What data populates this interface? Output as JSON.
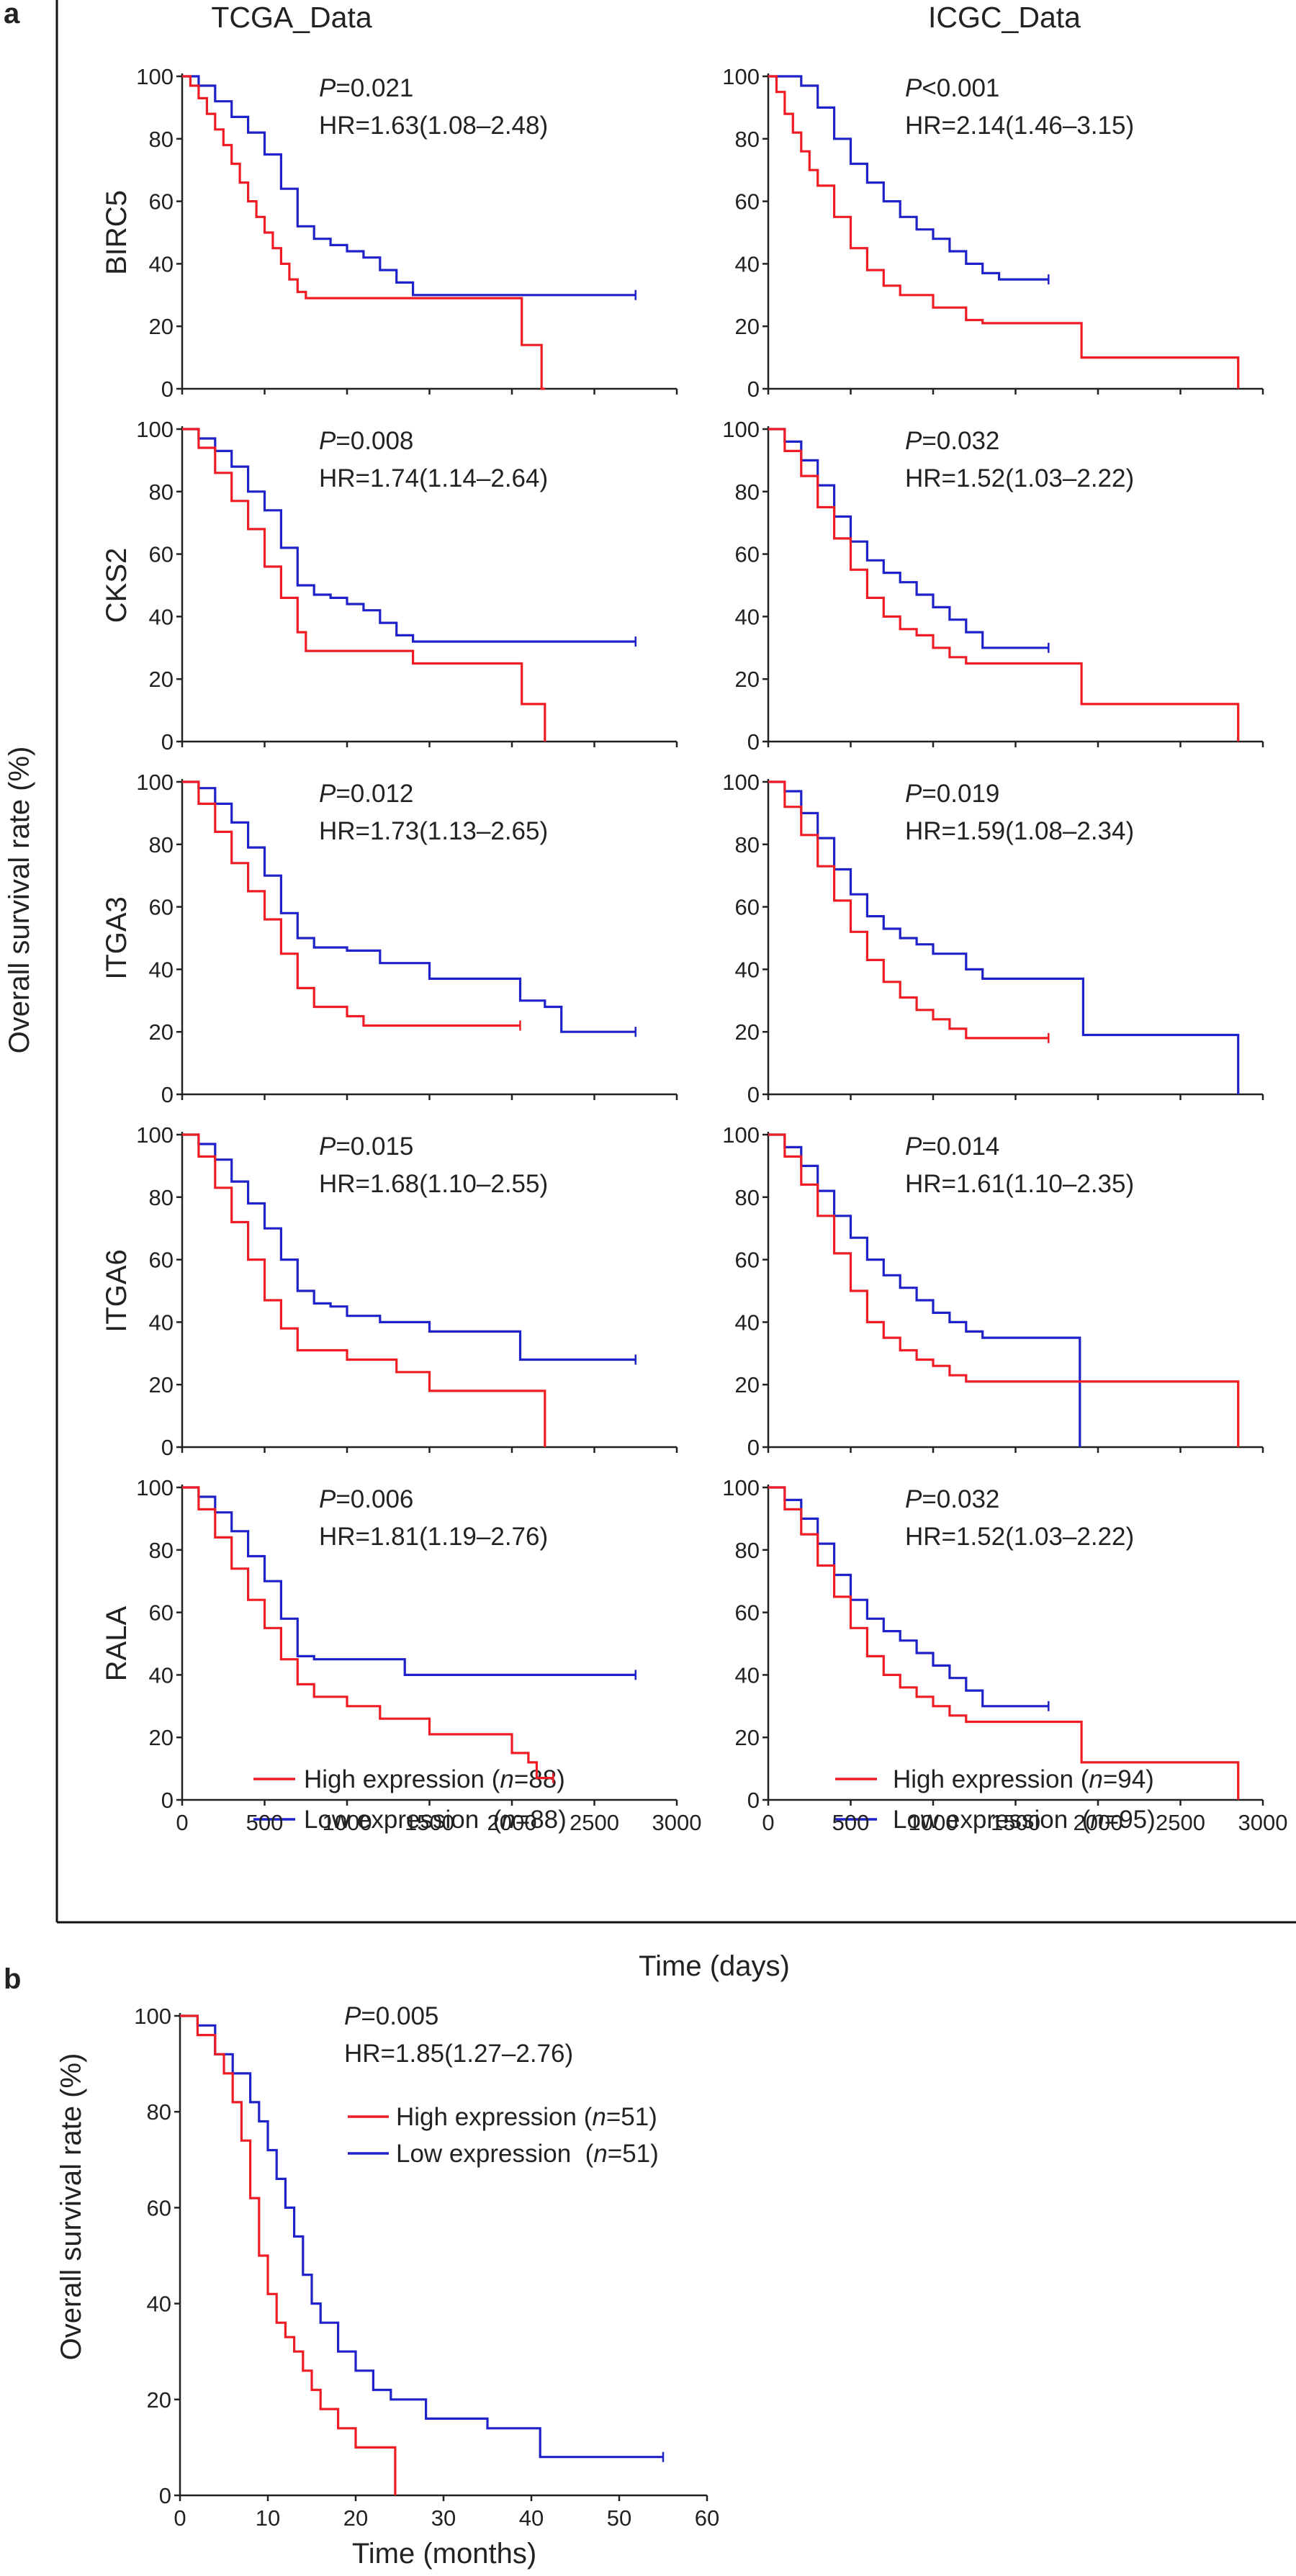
{
  "panel_labels": [
    "a",
    "b"
  ],
  "column_titles": [
    "TCGA_Data",
    "ICGC_Data"
  ],
  "panel_a": {
    "ylabel": "Overall survival rate (%)",
    "xlabel": "Time (days)",
    "y_ticks": [
      "0",
      "20",
      "40",
      "60",
      "80",
      "100"
    ],
    "x_ticks": [
      "0",
      "500",
      "1000",
      "1500",
      "2000",
      "2500",
      "3000"
    ],
    "legends": [
      {
        "high": "High expression (",
        "high_n": "n",
        "high_val": "=88)",
        "low": "Low expression  (",
        "low_n": "n",
        "low_val": "=88)"
      },
      {
        "high": "High expression (",
        "high_n": "n",
        "high_val": "=94)",
        "low": "Low expression  (",
        "low_n": "n",
        "low_val": "=95)"
      }
    ]
  },
  "panel_b": {
    "ylabel": "Overall survival rate (%)",
    "xlabel": "Time (months)",
    "y_ticks": [
      "0",
      "20",
      "40",
      "60",
      "80",
      "100"
    ],
    "x_ticks": [
      "0",
      "10",
      "20",
      "30",
      "40",
      "50",
      "60"
    ],
    "legend": {
      "high": "High expression (",
      "high_n": "n",
      "high_val": "=51)",
      "low": "Low expression  (",
      "low_n": "n",
      "low_val": "=51)"
    }
  },
  "colors": {
    "high": "#ee1c25",
    "low": "#1e22c8"
  },
  "chart_data": [
    {
      "type": "line",
      "title": "TCGA_Data",
      "gene": "BIRC5",
      "p_label": "P",
      "p_value": "=0.021",
      "hr": "HR=1.63(1.08–2.48)",
      "xlim": [
        0,
        3000
      ],
      "ylim": [
        0,
        100
      ],
      "series": [
        {
          "name": "High expression",
          "x": [
            0,
            50,
            100,
            150,
            200,
            250,
            300,
            350,
            400,
            450,
            500,
            550,
            600,
            650,
            700,
            750,
            2050,
            2060,
            2150,
            2180,
            2200
          ],
          "y": [
            100,
            97,
            93,
            88,
            83,
            78,
            72,
            66,
            60,
            55,
            50,
            45,
            40,
            35,
            31,
            29,
            29,
            14,
            14,
            0,
            0
          ]
        },
        {
          "name": "Low expression",
          "x": [
            0,
            100,
            200,
            300,
            400,
            500,
            600,
            700,
            800,
            900,
            1000,
            1100,
            1200,
            1300,
            1400,
            2000,
            2750
          ],
          "y": [
            100,
            97,
            92,
            87,
            82,
            75,
            64,
            52,
            48,
            46,
            44,
            42,
            38,
            34,
            30,
            30,
            30
          ]
        }
      ]
    },
    {
      "type": "line",
      "title": "ICGC_Data",
      "gene": "BIRC5",
      "p_label": "P",
      "p_value": "<0.001",
      "hr": "HR=2.14(1.46–3.15)",
      "xlim": [
        0,
        3000
      ],
      "ylim": [
        0,
        100
      ],
      "series": [
        {
          "name": "High expression",
          "x": [
            0,
            50,
            100,
            150,
            200,
            250,
            300,
            400,
            500,
            600,
            700,
            800,
            1000,
            1200,
            1300,
            1900,
            2850
          ],
          "y": [
            100,
            95,
            88,
            82,
            76,
            70,
            65,
            55,
            45,
            38,
            33,
            30,
            26,
            22,
            21,
            10,
            0
          ]
        },
        {
          "name": "Low expression",
          "x": [
            0,
            150,
            200,
            300,
            400,
            500,
            600,
            700,
            800,
            900,
            1000,
            1100,
            1200,
            1300,
            1400,
            1700
          ],
          "y": [
            100,
            100,
            97,
            90,
            80,
            72,
            66,
            60,
            55,
            51,
            48,
            44,
            40,
            37,
            35,
            35
          ]
        }
      ]
    },
    {
      "type": "line",
      "title": "TCGA_Data",
      "gene": "CKS2",
      "p_label": "P",
      "p_value": "=0.008",
      "hr": "HR=1.74(1.14–2.64)",
      "xlim": [
        0,
        3000
      ],
      "ylim": [
        0,
        100
      ],
      "series": [
        {
          "name": "High expression",
          "x": [
            0,
            100,
            200,
            300,
            400,
            500,
            600,
            700,
            750,
            1100,
            1400,
            2050,
            2060,
            2150,
            2200
          ],
          "y": [
            100,
            94,
            86,
            77,
            68,
            56,
            46,
            35,
            29,
            29,
            25,
            25,
            12,
            12,
            0
          ]
        },
        {
          "name": "Low expression",
          "x": [
            0,
            100,
            200,
            300,
            400,
            500,
            600,
            700,
            800,
            900,
            1000,
            1100,
            1200,
            1300,
            1400,
            1500,
            2750
          ],
          "y": [
            100,
            97,
            93,
            88,
            80,
            74,
            62,
            50,
            47,
            46,
            44,
            42,
            38,
            34,
            32,
            32,
            32
          ]
        }
      ]
    },
    {
      "type": "line",
      "title": "ICGC_Data",
      "gene": "CKS2",
      "p_label": "P",
      "p_value": "=0.032",
      "hr": "HR=1.52(1.03–2.22)",
      "xlim": [
        0,
        3000
      ],
      "ylim": [
        0,
        100
      ],
      "series": [
        {
          "name": "High expression",
          "x": [
            0,
            100,
            200,
            300,
            400,
            500,
            600,
            700,
            800,
            900,
            1000,
            1100,
            1200,
            1900,
            2850
          ],
          "y": [
            100,
            93,
            85,
            75,
            65,
            55,
            46,
            40,
            36,
            34,
            30,
            27,
            25,
            12,
            0
          ]
        },
        {
          "name": "Low expression",
          "x": [
            0,
            100,
            200,
            300,
            400,
            500,
            600,
            700,
            800,
            900,
            1000,
            1100,
            1200,
            1300,
            1700
          ],
          "y": [
            100,
            96,
            90,
            82,
            72,
            64,
            58,
            54,
            51,
            47,
            43,
            39,
            35,
            30,
            30
          ]
        }
      ]
    },
    {
      "type": "line",
      "title": "TCGA_Data",
      "gene": "ITGA3",
      "p_label": "P",
      "p_value": "=0.012",
      "hr": "HR=1.73(1.13–2.65)",
      "xlim": [
        0,
        3000
      ],
      "ylim": [
        0,
        100
      ],
      "series": [
        {
          "name": "High expression",
          "x": [
            0,
            100,
            200,
            300,
            400,
            500,
            600,
            700,
            800,
            1000,
            1100,
            2050
          ],
          "y": [
            100,
            93,
            84,
            74,
            65,
            56,
            45,
            34,
            28,
            25,
            22,
            22
          ]
        },
        {
          "name": "Low expression",
          "x": [
            0,
            100,
            200,
            300,
            400,
            500,
            600,
            700,
            800,
            900,
            1000,
            1200,
            1500,
            2050,
            2200,
            2300,
            2750
          ],
          "y": [
            100,
            98,
            93,
            87,
            79,
            70,
            58,
            50,
            47,
            47,
            46,
            42,
            37,
            30,
            28,
            20,
            20
          ]
        }
      ]
    },
    {
      "type": "line",
      "title": "ICGC_Data",
      "gene": "ITGA3",
      "p_label": "P",
      "p_value": "=0.019",
      "hr": "HR=1.59(1.08–2.34)",
      "xlim": [
        0,
        3000
      ],
      "ylim": [
        0,
        100
      ],
      "series": [
        {
          "name": "High expression",
          "x": [
            0,
            100,
            200,
            300,
            400,
            500,
            600,
            700,
            800,
            900,
            1000,
            1100,
            1200,
            1700
          ],
          "y": [
            100,
            92,
            83,
            73,
            62,
            52,
            43,
            36,
            31,
            27,
            24,
            21,
            18,
            18
          ]
        },
        {
          "name": "Low expression",
          "x": [
            0,
            100,
            200,
            300,
            400,
            500,
            600,
            700,
            800,
            900,
            1000,
            1200,
            1300,
            1900,
            1910,
            2850
          ],
          "y": [
            100,
            97,
            90,
            82,
            72,
            64,
            57,
            53,
            50,
            48,
            45,
            40,
            37,
            37,
            19,
            0
          ]
        }
      ]
    },
    {
      "type": "line",
      "title": "TCGA_Data",
      "gene": "ITGA6",
      "p_label": "P",
      "p_value": "=0.015",
      "hr": "HR=1.68(1.10–2.55)",
      "xlim": [
        0,
        3000
      ],
      "ylim": [
        0,
        100
      ],
      "series": [
        {
          "name": "High expression",
          "x": [
            0,
            100,
            200,
            300,
            400,
            500,
            600,
            700,
            1000,
            1300,
            1500,
            2150,
            2200
          ],
          "y": [
            100,
            93,
            83,
            72,
            60,
            47,
            38,
            31,
            28,
            24,
            18,
            18,
            0
          ]
        },
        {
          "name": "Low expression",
          "x": [
            0,
            100,
            200,
            300,
            400,
            500,
            600,
            700,
            800,
            900,
            1000,
            1200,
            1500,
            2050,
            2750
          ],
          "y": [
            100,
            97,
            92,
            85,
            78,
            70,
            60,
            50,
            46,
            45,
            42,
            40,
            37,
            28,
            28
          ]
        }
      ]
    },
    {
      "type": "line",
      "title": "ICGC_Data",
      "gene": "ITGA6",
      "p_label": "P",
      "p_value": "=0.014",
      "hr": "HR=1.61(1.10–2.35)",
      "xlim": [
        0,
        3000
      ],
      "ylim": [
        0,
        100
      ],
      "series": [
        {
          "name": "High expression",
          "x": [
            0,
            100,
            200,
            300,
            400,
            500,
            600,
            700,
            800,
            900,
            1000,
            1100,
            1200,
            1900,
            2850
          ],
          "y": [
            100,
            93,
            84,
            74,
            62,
            50,
            40,
            35,
            31,
            28,
            26,
            23,
            21,
            21,
            0
          ]
        },
        {
          "name": "Low expression",
          "x": [
            0,
            100,
            200,
            300,
            400,
            500,
            600,
            700,
            800,
            900,
            1000,
            1100,
            1200,
            1300,
            1880,
            1890
          ],
          "y": [
            100,
            96,
            90,
            82,
            74,
            67,
            60,
            55,
            51,
            47,
            43,
            40,
            37,
            35,
            35,
            0
          ]
        }
      ]
    },
    {
      "type": "line",
      "title": "TCGA_Data",
      "gene": "RALA",
      "p_label": "P",
      "p_value": "=0.006",
      "hr": "HR=1.81(1.19–2.76)",
      "xlim": [
        0,
        3000
      ],
      "ylim": [
        0,
        100
      ],
      "series": [
        {
          "name": "High expression",
          "x": [
            0,
            100,
            200,
            300,
            400,
            500,
            600,
            700,
            800,
            1000,
            1200,
            1500,
            2000,
            2100,
            2150,
            2200,
            2250
          ],
          "y": [
            100,
            93,
            84,
            74,
            64,
            55,
            45,
            37,
            33,
            30,
            26,
            21,
            15,
            12,
            7,
            7,
            7
          ]
        },
        {
          "name": "Low expression",
          "x": [
            0,
            100,
            200,
            300,
            400,
            500,
            600,
            700,
            800,
            1300,
            1350,
            2750
          ],
          "y": [
            100,
            97,
            92,
            86,
            78,
            70,
            58,
            46,
            45,
            45,
            40,
            40
          ]
        }
      ]
    },
    {
      "type": "line",
      "title": "ICGC_Data",
      "gene": "RALA",
      "p_label": "P",
      "p_value": "=0.032",
      "hr": "HR=1.52(1.03–2.22)",
      "xlim": [
        0,
        3000
      ],
      "ylim": [
        0,
        100
      ],
      "series": [
        {
          "name": "High expression",
          "x": [
            0,
            100,
            200,
            300,
            400,
            500,
            600,
            700,
            800,
            900,
            1000,
            1100,
            1200,
            1900,
            2850
          ],
          "y": [
            100,
            93,
            85,
            75,
            65,
            55,
            46,
            40,
            36,
            33,
            30,
            27,
            25,
            12,
            0
          ]
        },
        {
          "name": "Low expression",
          "x": [
            0,
            100,
            200,
            300,
            400,
            500,
            600,
            700,
            800,
            900,
            1000,
            1100,
            1200,
            1300,
            1700
          ],
          "y": [
            100,
            96,
            90,
            82,
            72,
            64,
            58,
            54,
            51,
            47,
            43,
            39,
            35,
            30,
            30
          ]
        }
      ]
    },
    {
      "type": "line",
      "title": "",
      "gene": "",
      "p_label": "P",
      "p_value": "=0.005",
      "hr": "HR=1.85(1.27–2.76)",
      "xlim": [
        0,
        60
      ],
      "ylim": [
        0,
        100
      ],
      "xlabel": "Time (months)",
      "ylabel": "Overall survival rate (%)",
      "series": [
        {
          "name": "High expression",
          "x": [
            0,
            2,
            4,
            5,
            6,
            7,
            8,
            9,
            10,
            11,
            12,
            13,
            14,
            15,
            16,
            18,
            20,
            24,
            24.5
          ],
          "y": [
            100,
            96,
            92,
            88,
            82,
            74,
            62,
            50,
            42,
            36,
            33,
            30,
            26,
            22,
            18,
            14,
            10,
            10,
            0
          ]
        },
        {
          "name": "Low expression",
          "x": [
            0,
            2,
            4,
            6,
            8,
            9,
            10,
            11,
            12,
            13,
            14,
            15,
            16,
            18,
            20,
            22,
            24,
            28,
            35,
            40,
            41,
            55
          ],
          "y": [
            100,
            98,
            92,
            88,
            82,
            78,
            72,
            66,
            60,
            54,
            46,
            40,
            36,
            30,
            26,
            22,
            20,
            16,
            14,
            14,
            8,
            8
          ]
        }
      ]
    }
  ]
}
